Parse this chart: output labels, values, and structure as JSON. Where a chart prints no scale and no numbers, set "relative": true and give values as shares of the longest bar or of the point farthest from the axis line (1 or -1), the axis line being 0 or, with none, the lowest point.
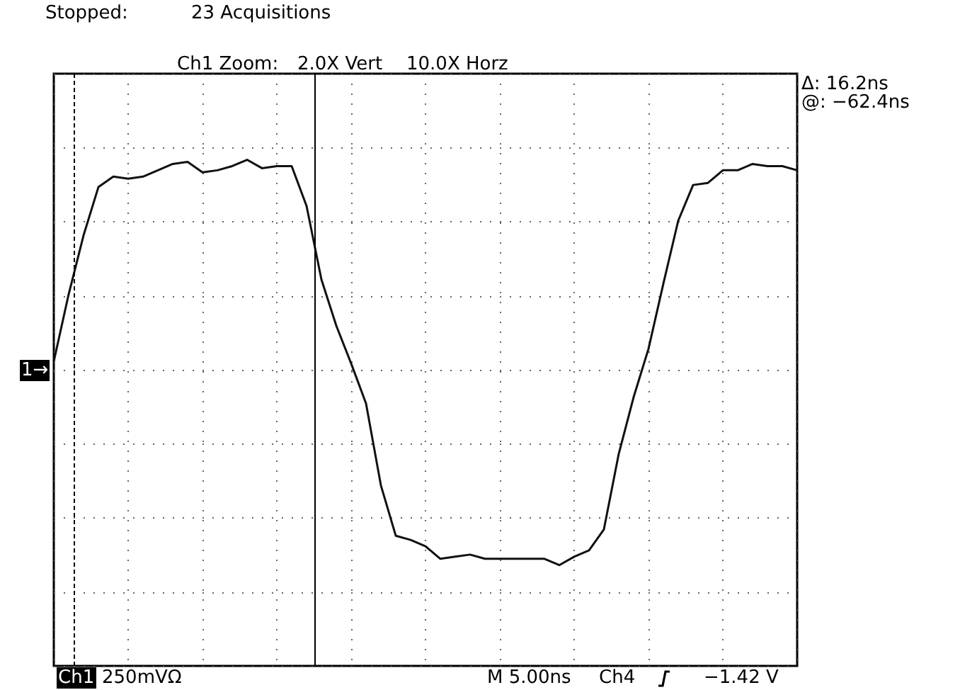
{
  "chart_data": {
    "type": "line",
    "relative": true,
    "grid": true,
    "marker": "none",
    "line_style": "solid",
    "categories": [
      null,
      null,
      null,
      null,
      null,
      null,
      null,
      null,
      null,
      null,
      null,
      null,
      null,
      null,
      null,
      null,
      null,
      null,
      null,
      null,
      null,
      null,
      null,
      null,
      null,
      null,
      null,
      null,
      null,
      null,
      null,
      null,
      null,
      null,
      null,
      null,
      null,
      null,
      null,
      null,
      null,
      null,
      null,
      null,
      null,
      null,
      null,
      null,
      null,
      null,
      null
    ],
    "series": [
      {
        "color": "#111111",
        "values": [
          0.04,
          0.36,
          0.64,
          0.87,
          0.92,
          0.91,
          0.92,
          0.95,
          0.98,
          0.99,
          0.94,
          0.95,
          0.97,
          1.0,
          0.96,
          0.97,
          0.97,
          0.78,
          0.43,
          0.21,
          0.03,
          -0.16,
          -0.55,
          -0.79,
          -0.81,
          -0.84,
          -0.9,
          -0.89,
          -0.88,
          -0.9,
          -0.9,
          -0.9,
          -0.9,
          -0.9,
          -0.93,
          -0.89,
          -0.86,
          -0.76,
          -0.4,
          -0.13,
          0.1,
          0.41,
          0.71,
          0.88,
          0.89,
          0.95,
          0.95,
          0.98,
          0.97,
          0.97,
          0.95
        ]
      }
    ],
    "annotations": [
      "Stopped:",
      "23 Acquisitions",
      "Ch1 Zoom:",
      "2.0X Vert",
      "10.0X Horz",
      "Δ: 16.2ns",
      "@: −62.4ns",
      "Ch1",
      "250mVΩ",
      "M 5.00ns",
      "Ch4",
      "−1.42 V",
      "1→"
    ]
  }
}
